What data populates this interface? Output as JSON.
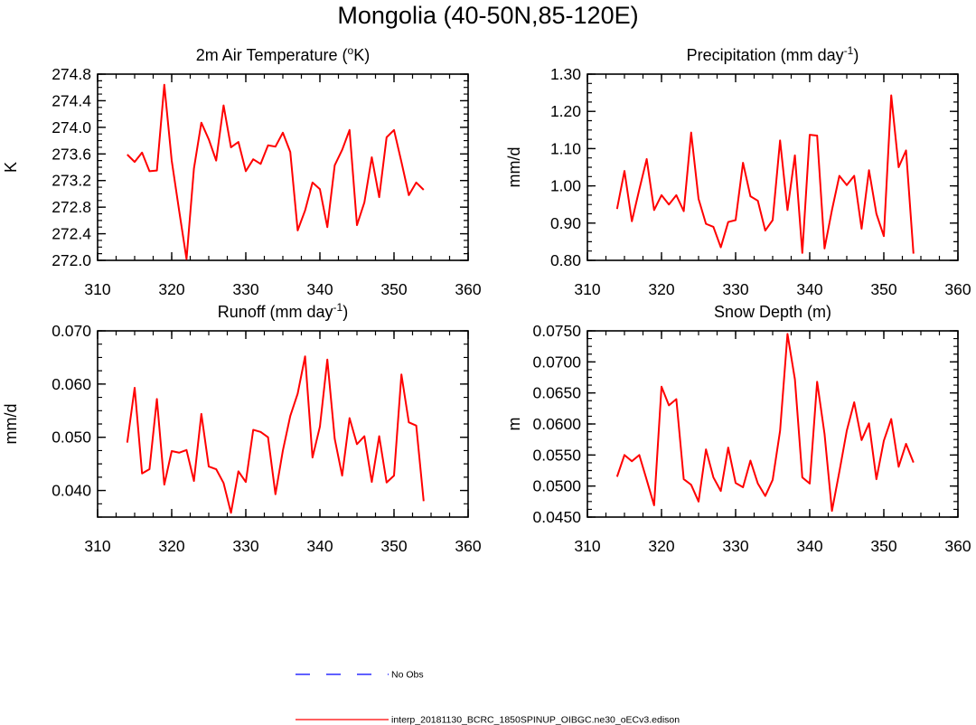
{
  "title": "Mongolia (40-50N,85-120E)",
  "chart_data": [
    {
      "type": "line",
      "title_parts": [
        {
          "t": "2m Air Temperature ("
        },
        {
          "t": "o",
          "sup": true
        },
        {
          "t": "K)"
        }
      ],
      "ylabel": "K",
      "xlim": [
        310,
        360
      ],
      "ylim": [
        272.0,
        274.8
      ],
      "xticks": [
        310,
        320,
        330,
        340,
        350,
        360
      ],
      "xtick_labels": [
        "310",
        "320",
        "330",
        "340",
        "350",
        "360"
      ],
      "yticks": [
        272.0,
        272.4,
        272.8,
        273.2,
        273.6,
        274.0,
        274.4,
        274.8
      ],
      "ytick_labels": [
        "272.0",
        "272.4",
        "272.8",
        "273.2",
        "273.6",
        "274.0",
        "274.4",
        "274.8"
      ],
      "series": [
        {
          "color": "#ff0000",
          "x": [
            314,
            315,
            316,
            317,
            318,
            319,
            320,
            321,
            322,
            323,
            324,
            325,
            326,
            327,
            328,
            329,
            330,
            331,
            332,
            333,
            334,
            335,
            336,
            337,
            338,
            339,
            340,
            341,
            342,
            343,
            344,
            345,
            346,
            347,
            348,
            349,
            350,
            351,
            352,
            353,
            354
          ],
          "values": [
            273.59,
            273.48,
            273.62,
            273.34,
            273.35,
            274.64,
            273.5,
            272.75,
            272.02,
            273.38,
            274.07,
            273.82,
            273.5,
            274.33,
            273.7,
            273.78,
            273.34,
            273.52,
            273.45,
            273.73,
            273.71,
            273.92,
            273.63,
            272.45,
            272.75,
            273.17,
            273.07,
            272.5,
            273.43,
            273.66,
            273.96,
            272.53,
            272.87,
            273.55,
            272.95,
            273.85,
            273.96,
            273.48,
            272.98,
            273.17,
            273.06
          ]
        }
      ]
    },
    {
      "type": "line",
      "title_parts": [
        {
          "t": "Precipitation (mm day"
        },
        {
          "t": "-1",
          "sup": true
        },
        {
          "t": ")"
        }
      ],
      "ylabel": "mm/d",
      "xlim": [
        310,
        360
      ],
      "ylim": [
        0.8,
        1.3
      ],
      "xticks": [
        310,
        320,
        330,
        340,
        350,
        360
      ],
      "xtick_labels": [
        "310",
        "320",
        "330",
        "340",
        "350",
        "360"
      ],
      "yticks": [
        0.8,
        0.9,
        1.0,
        1.1,
        1.2,
        1.3
      ],
      "ytick_labels": [
        "0.80",
        "0.90",
        "1.00",
        "1.10",
        "1.20",
        "1.30"
      ],
      "series": [
        {
          "color": "#ff0000",
          "x": [
            314,
            315,
            316,
            317,
            318,
            319,
            320,
            321,
            322,
            323,
            324,
            325,
            326,
            327,
            328,
            329,
            330,
            331,
            332,
            333,
            334,
            335,
            336,
            337,
            338,
            339,
            340,
            341,
            342,
            343,
            344,
            345,
            346,
            347,
            348,
            349,
            350,
            351,
            352,
            353,
            354
          ],
          "values": [
            0.938,
            1.04,
            0.905,
            0.99,
            1.072,
            0.935,
            0.975,
            0.95,
            0.975,
            0.932,
            1.143,
            0.965,
            0.898,
            0.89,
            0.835,
            0.903,
            0.908,
            1.062,
            0.972,
            0.96,
            0.88,
            0.908,
            1.122,
            0.935,
            1.082,
            0.82,
            1.137,
            1.135,
            0.832,
            0.935,
            1.027,
            1.002,
            1.027,
            0.885,
            1.042,
            0.925,
            0.865,
            1.243,
            1.05,
            1.095,
            0.818
          ]
        }
      ]
    },
    {
      "type": "line",
      "title_parts": [
        {
          "t": "Runoff (mm day"
        },
        {
          "t": "-1",
          "sup": true
        },
        {
          "t": ")"
        }
      ],
      "ylabel": "mm/d",
      "xlim": [
        310,
        360
      ],
      "ylim": [
        0.035,
        0.07
      ],
      "xticks": [
        310,
        320,
        330,
        340,
        350,
        360
      ],
      "xtick_labels": [
        "310",
        "320",
        "330",
        "340",
        "350",
        "360"
      ],
      "yticks": [
        0.04,
        0.05,
        0.06,
        0.07
      ],
      "ytick_labels": [
        "0.040",
        "0.050",
        "0.060",
        "0.070"
      ],
      "series": [
        {
          "color": "#ff0000",
          "x": [
            314,
            315,
            316,
            317,
            318,
            319,
            320,
            321,
            322,
            323,
            324,
            325,
            326,
            327,
            328,
            329,
            330,
            331,
            332,
            333,
            334,
            335,
            336,
            337,
            338,
            339,
            340,
            341,
            342,
            343,
            344,
            345,
            346,
            347,
            348,
            349,
            350,
            351,
            352,
            353,
            354
          ],
          "values": [
            0.049,
            0.0593,
            0.0432,
            0.044,
            0.0572,
            0.0411,
            0.0474,
            0.0471,
            0.0476,
            0.0418,
            0.0544,
            0.0445,
            0.044,
            0.0414,
            0.0358,
            0.0436,
            0.0416,
            0.0514,
            0.051,
            0.05,
            0.0393,
            0.0475,
            0.054,
            0.0582,
            0.0652,
            0.0462,
            0.052,
            0.0646,
            0.0497,
            0.0428,
            0.0536,
            0.0487,
            0.0502,
            0.0416,
            0.0502,
            0.0415,
            0.0428,
            0.0618,
            0.0528,
            0.0522,
            0.038
          ]
        }
      ]
    },
    {
      "type": "line",
      "title_parts": [
        {
          "t": "Snow Depth (m)"
        }
      ],
      "ylabel": "m",
      "xlim": [
        310,
        360
      ],
      "ylim": [
        0.045,
        0.075
      ],
      "xticks": [
        310,
        320,
        330,
        340,
        350,
        360
      ],
      "xtick_labels": [
        "310",
        "320",
        "330",
        "340",
        "350",
        "360"
      ],
      "yticks": [
        0.045,
        0.05,
        0.055,
        0.06,
        0.065,
        0.07,
        0.075
      ],
      "ytick_labels": [
        "0.0450",
        "0.0500",
        "0.0550",
        "0.0600",
        "0.0650",
        "0.0700",
        "0.0750"
      ],
      "series": [
        {
          "color": "#ff0000",
          "x": [
            314,
            315,
            316,
            317,
            318,
            319,
            320,
            321,
            322,
            323,
            324,
            325,
            326,
            327,
            328,
            329,
            330,
            331,
            332,
            333,
            334,
            335,
            336,
            337,
            338,
            339,
            340,
            341,
            342,
            343,
            344,
            345,
            346,
            347,
            348,
            349,
            350,
            351,
            352,
            353,
            354
          ],
          "values": [
            0.0515,
            0.055,
            0.054,
            0.055,
            0.051,
            0.0469,
            0.066,
            0.063,
            0.064,
            0.0511,
            0.0502,
            0.0475,
            0.0559,
            0.0514,
            0.0492,
            0.0562,
            0.0505,
            0.0498,
            0.0541,
            0.0504,
            0.0484,
            0.051,
            0.0589,
            0.0745,
            0.0672,
            0.0514,
            0.0504,
            0.0668,
            0.0584,
            0.046,
            0.0523,
            0.0589,
            0.0635,
            0.0574,
            0.0601,
            0.0511,
            0.0573,
            0.0608,
            0.0531,
            0.0568,
            0.0538
          ]
        }
      ]
    }
  ],
  "legend": {
    "items": [
      {
        "label": "No Obs",
        "color": "#0000ff",
        "style": "dashed"
      },
      {
        "label": "interp_20181130_BCRC_1850SPINUP_OIBGC.ne30_oECv3.edison",
        "color": "#ff0000",
        "style": "solid"
      }
    ]
  }
}
